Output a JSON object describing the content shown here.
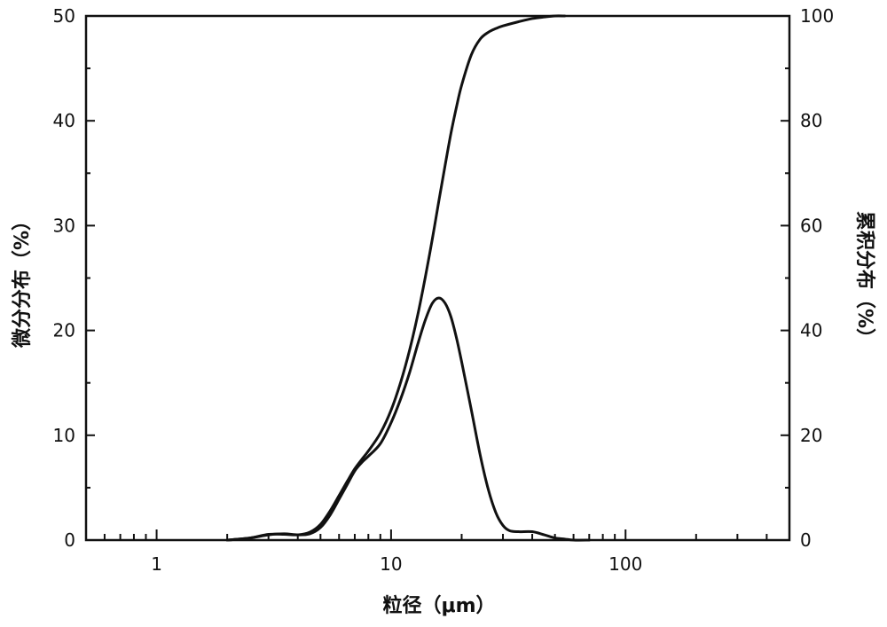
{
  "chart_data": {
    "type": "line",
    "xscale": "log",
    "xlim": [
      0.5,
      500
    ],
    "xticks": [
      1,
      10,
      100
    ],
    "xtick_labels": [
      "1",
      "10",
      "100"
    ],
    "xlabel": "粒径（μm）",
    "ylabel_left": "微分分布（%）",
    "ylabel_right": "累积分布（%）",
    "ylim_left": [
      0,
      50
    ],
    "ylim_right": [
      0,
      100
    ],
    "yticks_left": [
      0,
      10,
      20,
      30,
      40,
      50
    ],
    "yticks_right": [
      0,
      20,
      40,
      60,
      80,
      100
    ],
    "grid": false,
    "legend": "none",
    "series": [
      {
        "axis": "left",
        "x": [
          2.0,
          2.5,
          3.0,
          3.5,
          4.0,
          4.5,
          5.0,
          5.5,
          6.0,
          6.5,
          7.0,
          7.5,
          8.0,
          9.0,
          10.0,
          11.0,
          12.0,
          13.0,
          14.0,
          15.0,
          16.0,
          17.0,
          18.0,
          19.0,
          20.0,
          22.0,
          24.0,
          26.0,
          28.0,
          30.0,
          32.0,
          35.0,
          40.0,
          45.0,
          50.0,
          55.0,
          60.0,
          70.0
        ],
        "y": [
          0,
          0.2,
          0.5,
          0.6,
          0.5,
          0.6,
          1.2,
          2.4,
          3.9,
          5.3,
          6.6,
          7.4,
          8.0,
          9.2,
          11.2,
          13.5,
          16.0,
          18.7,
          21.0,
          22.6,
          23.1,
          22.6,
          21.3,
          19.3,
          17.0,
          12.4,
          8.1,
          4.8,
          2.6,
          1.4,
          0.9,
          0.8,
          0.8,
          0.5,
          0.2,
          0.1,
          0,
          0
        ]
      },
      {
        "axis": "right",
        "x": [
          2.0,
          2.5,
          3.0,
          3.5,
          4.0,
          4.5,
          5.0,
          5.5,
          6.0,
          6.5,
          7.0,
          7.5,
          8.0,
          9.0,
          10.0,
          11.0,
          12.0,
          13.0,
          14.0,
          15.0,
          16.0,
          17.0,
          18.0,
          19.0,
          20.0,
          22.0,
          24.0,
          26.0,
          28.0,
          30.0,
          35.0,
          40.0,
          45.0,
          50.0,
          55.0
        ],
        "y": [
          0,
          0.4,
          1.1,
          1.1,
          1.0,
          1.5,
          3.0,
          5.6,
          8.5,
          11.2,
          13.6,
          15.4,
          17.0,
          20.4,
          24.8,
          30.2,
          36.3,
          43.0,
          50.2,
          57.5,
          64.8,
          71.5,
          77.6,
          82.6,
          86.8,
          92.6,
          95.6,
          96.9,
          97.6,
          98.1,
          98.9,
          99.5,
          99.8,
          100,
          100
        ]
      }
    ]
  }
}
